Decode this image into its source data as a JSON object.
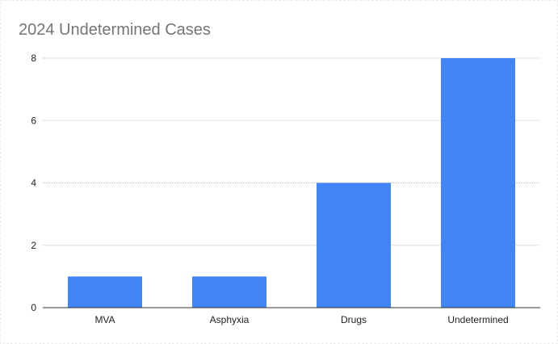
{
  "chart_data": {
    "type": "bar",
    "title": "2024 Undetermined Cases",
    "xlabel": "",
    "ylabel": "",
    "categories": [
      "MVA",
      "Asphyxia",
      "Drugs",
      "Undetermined"
    ],
    "values": [
      1,
      1,
      4,
      8
    ],
    "ylim": [
      0,
      8
    ],
    "yticks": [
      "0",
      "2",
      "4",
      "6",
      "8"
    ],
    "grid": true,
    "legend": "none",
    "bar_color": "#4285f4",
    "grid_color": "#bdbdbd",
    "axis_color": "#333333",
    "title_color": "#757575"
  }
}
